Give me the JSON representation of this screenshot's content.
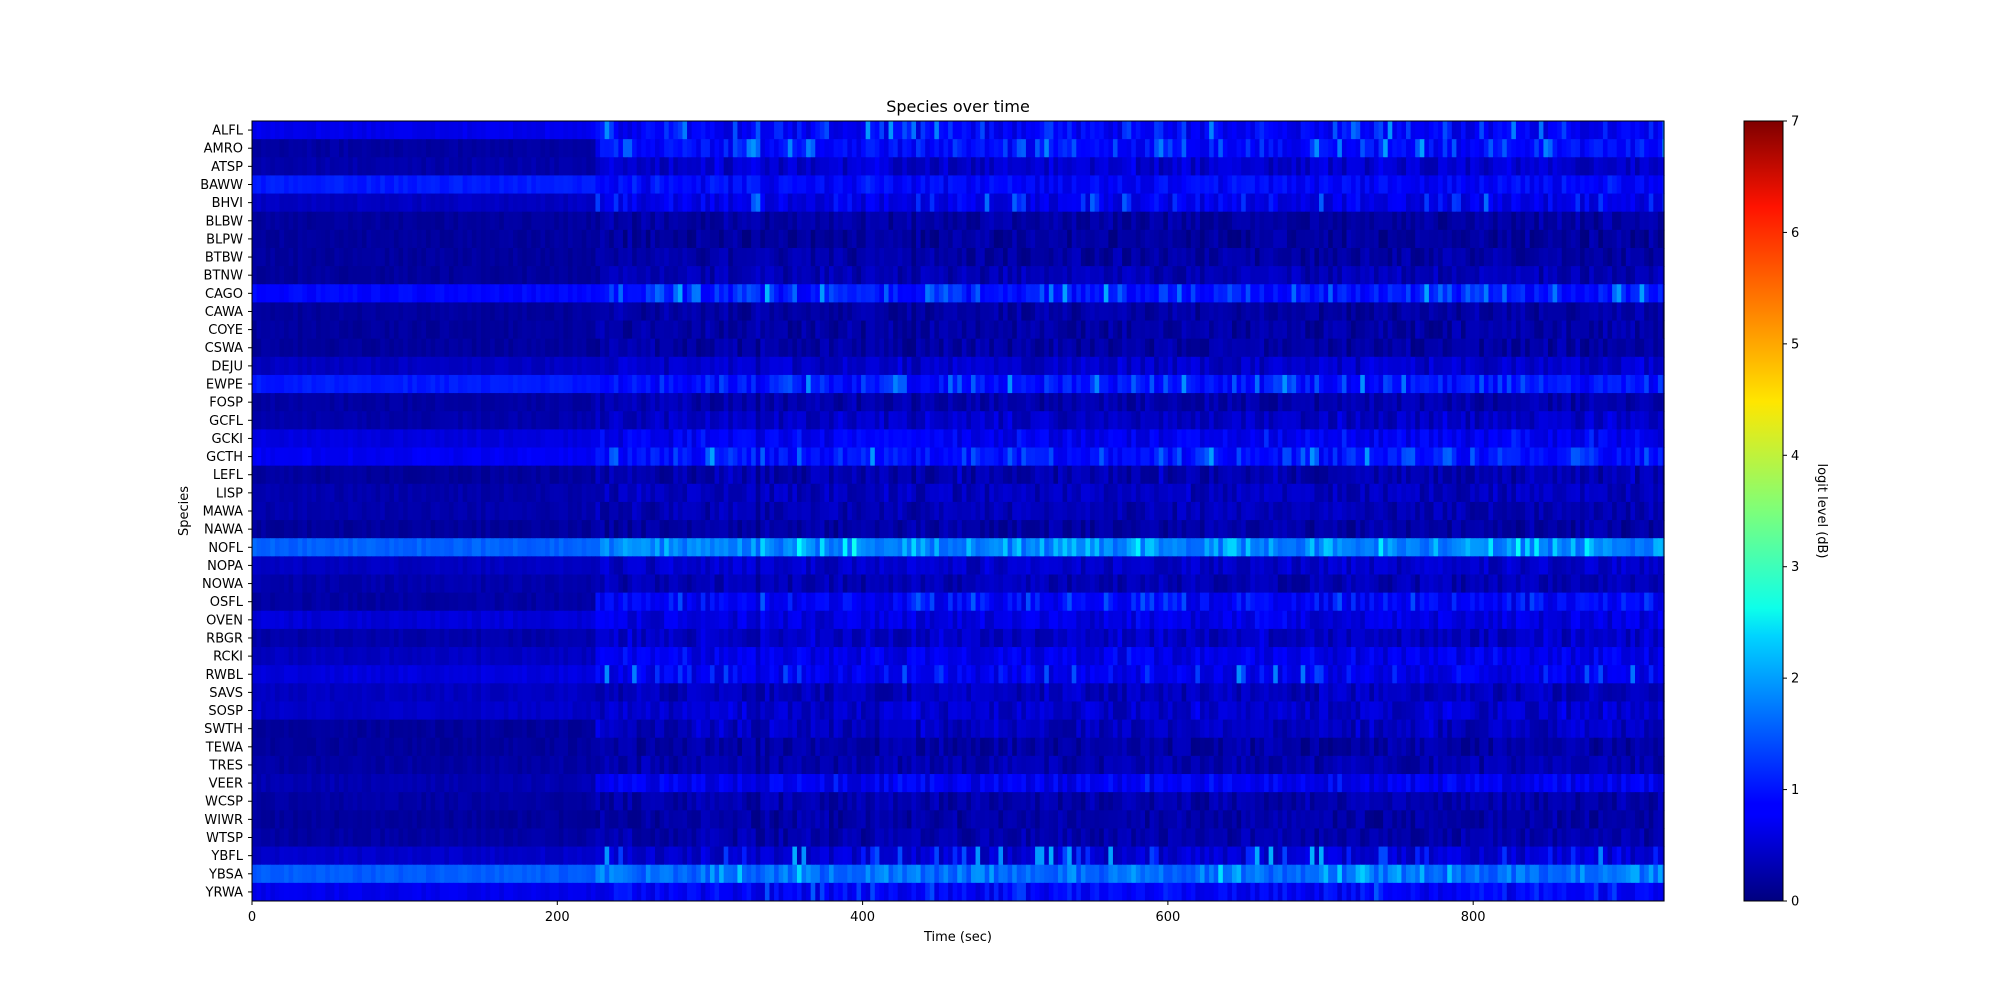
{
  "chart_data": {
    "type": "heatmap",
    "title": "Species over time",
    "xlabel": "Time (sec)",
    "ylabel": "Species",
    "xlim": [
      0,
      925
    ],
    "xticks": [
      0,
      200,
      400,
      600,
      800
    ],
    "xtick_labels": [
      "0",
      "200",
      "400",
      "600",
      "800"
    ],
    "species": [
      "ALFL",
      "AMRO",
      "ATSP",
      "BAWW",
      "BHVI",
      "BLBW",
      "BLPW",
      "BTBW",
      "BTNW",
      "CAGO",
      "CAWA",
      "COYE",
      "CSWA",
      "DEJU",
      "EWPE",
      "FOSP",
      "GCFL",
      "GCKI",
      "GCTH",
      "LEFL",
      "LISP",
      "MAWA",
      "NAWA",
      "NOFL",
      "NOPA",
      "NOWA",
      "OSFL",
      "OVEN",
      "RBGR",
      "RCKI",
      "RWBL",
      "SAVS",
      "SOSP",
      "SWTH",
      "TEWA",
      "TRES",
      "VEER",
      "WCSP",
      "WIWR",
      "WTSP",
      "YBFL",
      "YBSA",
      "YRWA"
    ],
    "colorbar": {
      "label": "logit level (dB)",
      "min": 0,
      "max": 7,
      "ticks": [
        0,
        1,
        2,
        3,
        4,
        5,
        6,
        7
      ],
      "tick_labels": [
        "0",
        "1",
        "2",
        "3",
        "4",
        "5",
        "6",
        "7"
      ],
      "colormap": "jet"
    },
    "grid": false,
    "approx_levels": {
      "time_step_sec": 3,
      "change_point_sec": 225,
      "rows": {
        "ALFL": {
          "before": 0.75,
          "after": 0.8,
          "peak": 1.9
        },
        "AMRO": {
          "before": 0.25,
          "after": 0.9,
          "peak": 2.0
        },
        "ATSP": {
          "before": 0.3,
          "after": 0.5,
          "peak": 0.9
        },
        "BAWW": {
          "before": 1.05,
          "after": 0.85,
          "peak": 1.2
        },
        "BHVI": {
          "before": 0.45,
          "after": 0.7,
          "peak": 1.7
        },
        "BLBW": {
          "before": 0.2,
          "after": 0.25,
          "peak": 0.4
        },
        "BLPW": {
          "before": 0.2,
          "after": 0.2,
          "peak": 0.3
        },
        "BTBW": {
          "before": 0.2,
          "after": 0.25,
          "peak": 0.4
        },
        "BTNW": {
          "before": 0.2,
          "after": 0.35,
          "peak": 0.6
        },
        "CAGO": {
          "before": 0.9,
          "after": 1.0,
          "peak": 2.2
        },
        "CAWA": {
          "before": 0.2,
          "after": 0.25,
          "peak": 0.35
        },
        "COYE": {
          "before": 0.2,
          "after": 0.25,
          "peak": 0.4
        },
        "CSWA": {
          "before": 0.2,
          "after": 0.25,
          "peak": 0.4
        },
        "DEJU": {
          "before": 0.45,
          "after": 0.5,
          "peak": 0.8
        },
        "EWPE": {
          "before": 1.05,
          "after": 0.95,
          "peak": 1.9
        },
        "FOSP": {
          "before": 0.25,
          "after": 0.3,
          "peak": 0.5
        },
        "GCFL": {
          "before": 0.3,
          "after": 0.45,
          "peak": 0.8
        },
        "GCKI": {
          "before": 0.65,
          "after": 0.75,
          "peak": 1.2
        },
        "GCTH": {
          "before": 0.8,
          "after": 0.95,
          "peak": 2.0
        },
        "LEFL": {
          "before": 0.2,
          "after": 0.3,
          "peak": 0.7
        },
        "LISP": {
          "before": 0.3,
          "after": 0.4,
          "peak": 0.7
        },
        "MAWA": {
          "before": 0.3,
          "after": 0.35,
          "peak": 0.6
        },
        "NAWA": {
          "before": 0.2,
          "after": 0.25,
          "peak": 0.4
        },
        "NOFL": {
          "before": 1.55,
          "after": 1.75,
          "peak": 2.75
        },
        "NOPA": {
          "before": 0.45,
          "after": 0.5,
          "peak": 0.8
        },
        "NOWA": {
          "before": 0.3,
          "after": 0.35,
          "peak": 0.6
        },
        "OSFL": {
          "before": 0.25,
          "after": 0.8,
          "peak": 1.5
        },
        "OVEN": {
          "before": 0.6,
          "after": 0.65,
          "peak": 1.0
        },
        "RBGR": {
          "before": 0.3,
          "after": 0.45,
          "peak": 0.8
        },
        "RCKI": {
          "before": 0.45,
          "after": 0.7,
          "peak": 1.1
        },
        "RWBL": {
          "before": 0.65,
          "after": 0.75,
          "peak": 1.9
        },
        "SAVS": {
          "before": 0.45,
          "after": 0.4,
          "peak": 0.7
        },
        "SOSP": {
          "before": 0.5,
          "after": 0.5,
          "peak": 0.9
        },
        "SWTH": {
          "before": 0.2,
          "after": 0.4,
          "peak": 0.8
        },
        "TEWA": {
          "before": 0.2,
          "after": 0.25,
          "peak": 0.4
        },
        "TRES": {
          "before": 0.25,
          "after": 0.3,
          "peak": 0.5
        },
        "VEER": {
          "before": 0.35,
          "after": 0.75,
          "peak": 1.2
        },
        "WCSP": {
          "before": 0.25,
          "after": 0.3,
          "peak": 0.5
        },
        "WIWR": {
          "before": 0.2,
          "after": 0.25,
          "peak": 0.4
        },
        "WTSP": {
          "before": 0.25,
          "after": 0.3,
          "peak": 0.5
        },
        "YBFL": {
          "before": 0.5,
          "after": 0.55,
          "peak": 2.1
        },
        "YBSA": {
          "before": 1.5,
          "after": 1.6,
          "peak": 2.5
        },
        "YRWA": {
          "before": 0.75,
          "after": 0.8,
          "peak": 1.5
        }
      }
    }
  }
}
